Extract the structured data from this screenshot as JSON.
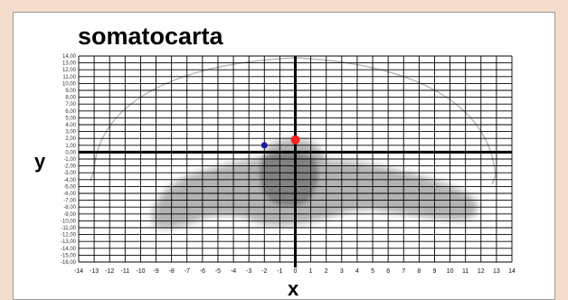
{
  "chart_data": {
    "type": "scatter",
    "title": "somatocarta",
    "xlabel": "x",
    "ylabel": "y",
    "xlim": [
      -14,
      14
    ],
    "ylim": [
      -16,
      14
    ],
    "x_ticks": [
      -14,
      -13,
      -12,
      -11,
      -10,
      -9,
      -8,
      -7,
      -6,
      -5,
      -4,
      -3,
      -2,
      -1,
      0,
      1,
      2,
      3,
      4,
      5,
      6,
      7,
      8,
      9,
      10,
      11,
      12,
      13,
      14
    ],
    "y_ticks": [
      "14,00",
      "13,00",
      "12,00",
      "11,00",
      "10,00",
      "9,00",
      "8,00",
      "7,00",
      "6,00",
      "5,00",
      "4,00",
      "3,00",
      "2,00",
      "1,00",
      "0,00",
      "-1,00",
      "-2,00",
      "-3,00",
      "-4,00",
      "-5,00",
      "-6,00",
      "-7,00",
      "-8,00",
      "-9,00",
      "-10,00",
      "-11,00",
      "-12,00",
      "-13,00",
      "-14,00",
      "-15,00",
      "-16,00"
    ],
    "grid": true,
    "background": "faded somatochart silhouette",
    "series": [
      {
        "x": 0.0,
        "y": 1.8,
        "color": "#ff2020"
      },
      {
        "x": -2.0,
        "y": 1.0,
        "color": "#1a1aa0"
      }
    ]
  }
}
